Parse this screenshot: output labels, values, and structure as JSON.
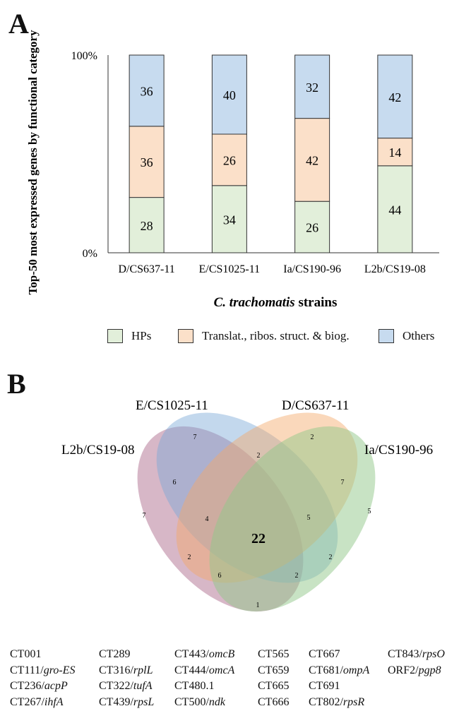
{
  "panel_a": {
    "letter": "A"
  },
  "panel_b": {
    "letter": "B"
  },
  "chart_data": {
    "type": "bar",
    "stacked": true,
    "percent": true,
    "title": "",
    "ylabel": "Top-50 most expressed genes by functional category",
    "xlabel": "C. trachomatis strains",
    "xlabel_italic_part": "C. trachomatis",
    "xlabel_plain_part": " strains",
    "ylim": [
      0,
      100
    ],
    "yticks": [
      "0%",
      "100%"
    ],
    "categories": [
      "D/CS637-11",
      "E/CS1025-11",
      "Ia/CS190-96",
      "L2b/CS19-08"
    ],
    "series": [
      {
        "name": "HPs",
        "color": "#e2efda",
        "values": [
          28,
          34,
          26,
          44
        ]
      },
      {
        "name": "Translat., ribos. struct. & biog.",
        "color": "#fbe0c9",
        "values": [
          36,
          26,
          42,
          14
        ]
      },
      {
        "name": "Others",
        "color": "#c7dbef",
        "values": [
          36,
          40,
          32,
          42
        ]
      }
    ],
    "legend_position": "bottom",
    "grid": false
  },
  "venn": {
    "sets": [
      {
        "label": "L2b/CS19-08",
        "color": "#b07090"
      },
      {
        "label": "E/CS1025-11",
        "color": "#7aa8d8"
      },
      {
        "label": "D/CS637-11",
        "color": "#f4a868"
      },
      {
        "label": "Ia/CS190-96",
        "color": "#92c88a"
      }
    ],
    "regions": [
      {
        "value": "7",
        "sets": [
          "E/CS1025-11"
        ]
      },
      {
        "value": "2",
        "sets": [
          "D/CS637-11"
        ]
      },
      {
        "value": "7",
        "sets": [
          "L2b/CS19-08"
        ]
      },
      {
        "value": "5",
        "sets": [
          "Ia/CS190-96"
        ]
      },
      {
        "value": "2",
        "sets": [
          "E/CS1025-11",
          "D/CS637-11"
        ]
      },
      {
        "value": "6",
        "sets": [
          "L2b/CS19-08",
          "E/CS1025-11"
        ]
      },
      {
        "value": "7",
        "sets": [
          "D/CS637-11",
          "Ia/CS190-96"
        ]
      },
      {
        "value": "4",
        "sets": [
          "L2b/CS19-08",
          "E/CS1025-11",
          "D/CS637-11"
        ]
      },
      {
        "value": "5",
        "sets": [
          "E/CS1025-11",
          "D/CS637-11",
          "Ia/CS190-96"
        ]
      },
      {
        "value": "22",
        "sets": [
          "L2b/CS19-08",
          "E/CS1025-11",
          "D/CS637-11",
          "Ia/CS190-96"
        ]
      },
      {
        "value": "2",
        "sets": [
          "L2b/CS19-08",
          "D/CS637-11"
        ]
      },
      {
        "value": "2",
        "sets": [
          "E/CS1025-11",
          "Ia/CS190-96"
        ]
      },
      {
        "value": "6",
        "sets": [
          "L2b/CS19-08",
          "D/CS637-11",
          "Ia/CS190-96"
        ]
      },
      {
        "value": "2",
        "sets": [
          "L2b/CS19-08",
          "E/CS1025-11",
          "Ia/CS190-96"
        ]
      },
      {
        "value": "1",
        "sets": [
          "L2b/CS19-08",
          "Ia/CS190-96"
        ]
      }
    ]
  },
  "gene_table": {
    "rows": [
      [
        {
          "id": "CT001",
          "name": ""
        },
        {
          "id": "CT289",
          "name": ""
        },
        {
          "id": "CT443/",
          "name": "omcB"
        },
        {
          "id": "CT565",
          "name": ""
        },
        {
          "id": "CT667",
          "name": ""
        },
        {
          "id": "CT843/",
          "name": "rpsO"
        }
      ],
      [
        {
          "id": "CT111/",
          "name": "gro-ES"
        },
        {
          "id": "CT316/",
          "name": "rplL"
        },
        {
          "id": "CT444/",
          "name": "omcA"
        },
        {
          "id": "CT659",
          "name": ""
        },
        {
          "id": "CT681/",
          "name": "ompA"
        },
        {
          "id": "ORF2/",
          "name": "pgp8"
        }
      ],
      [
        {
          "id": "CT236/",
          "name": "acpP"
        },
        {
          "id": "CT322/",
          "name": "tufA"
        },
        {
          "id": "CT480.1",
          "name": ""
        },
        {
          "id": "CT665",
          "name": ""
        },
        {
          "id": "CT691",
          "name": ""
        },
        {
          "id": "",
          "name": ""
        }
      ],
      [
        {
          "id": "CT267/",
          "name": "ihfA"
        },
        {
          "id": "CT439/",
          "name": "rpsL"
        },
        {
          "id": "CT500/",
          "name": "ndk"
        },
        {
          "id": "CT666",
          "name": ""
        },
        {
          "id": "CT802/",
          "name": "rpsR"
        },
        {
          "id": "",
          "name": ""
        }
      ]
    ]
  }
}
